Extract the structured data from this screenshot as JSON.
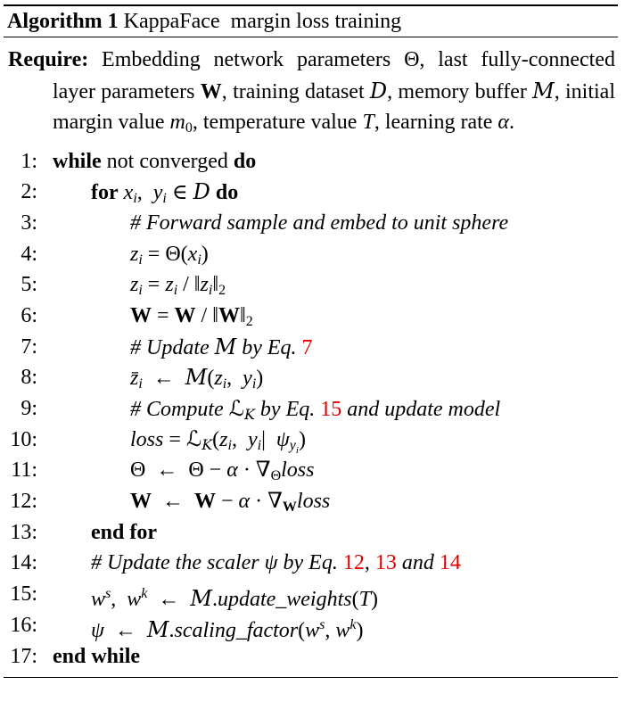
{
  "algorithm": {
    "label": "Algorithm 1",
    "title": "KappaFace  margin loss training"
  },
  "require": {
    "keyword": "Require:",
    "text_1": "Embedding network parameters ",
    "theta": "Θ",
    "text_2": ", last fully-connected layer parameters ",
    "W": "W",
    "text_3": ", training dataset ",
    "D": "D",
    "text_4": ", memory buffer ",
    "M": "M",
    "text_5": ", initial margin value ",
    "m0_base": "m",
    "m0_sub": "0",
    "text_6": ", temperature value ",
    "T": "T",
    "text_7": ", learning rate ",
    "alpha": "α",
    "text_8": "."
  },
  "lines": {
    "n1": "1:",
    "n2": "2:",
    "n3": "3:",
    "n4": "4:",
    "n5": "5:",
    "n6": "6:",
    "n7": "7:",
    "n8": "8:",
    "n9": "9:",
    "n10": "10:",
    "n11": "11:",
    "n12": "12:",
    "n13": "13:",
    "n14": "14:",
    "n15": "15:",
    "n16": "16:",
    "n17": "17:",
    "l1_kw1": "while",
    "l1_text": " not converged ",
    "l1_kw2": "do",
    "l2_kw1": "for",
    "l2_kw2": "do",
    "l3_comment": "# Forward sample and embed to unit sphere",
    "l7_comment_a": "# Update ",
    "l7_comment_b": " by Eq. ",
    "l7_ref": "7",
    "l9_comment_a": "# Compute ",
    "l9_comment_b": " by Eq. ",
    "l9_ref": "15",
    "l9_comment_c": " and update model",
    "l10_loss": "loss",
    "l11_loss": "loss",
    "l12_loss": "loss",
    "l13_kw": "end for",
    "l14_comment_a": "# Update the scaler ",
    "l14_comment_b": " by Eq. ",
    "l14_ref1": "12",
    "l14_sep": ", ",
    "l14_ref2": "13",
    "l14_and": " and ",
    "l14_ref3": "14",
    "l15_method": "update_weights",
    "l16_method": "scaling_factor",
    "l17_kw": "end while"
  },
  "colors": {
    "reference": "#e00000",
    "text": "#000000"
  }
}
